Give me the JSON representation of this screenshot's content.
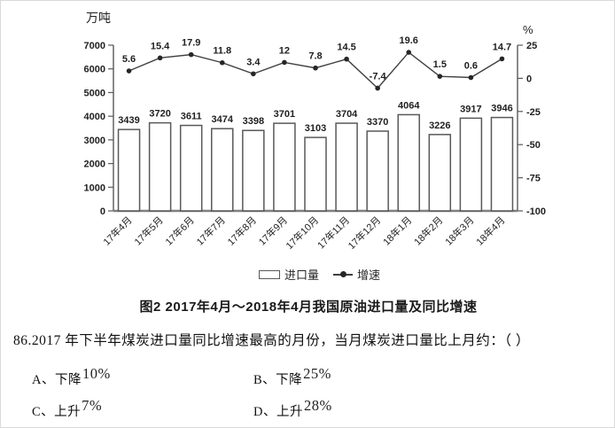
{
  "chart": {
    "unit_left": "万吨",
    "unit_right": "%",
    "legend": {
      "bar": "进口量",
      "line": "增速"
    },
    "title": "图2 2017年4月～2018年4月我国原油进口量及同比增速"
  },
  "chart_data": {
    "type": "bar+line",
    "title": "图2 2017年4月～2018年4月我国原油进口量及同比增速",
    "categories": [
      "17年4月",
      "17年5月",
      "17年6月",
      "17年7月",
      "17年8月",
      "17年9月",
      "17年10月",
      "17年11月",
      "17年12月",
      "18年1月",
      "18年2月",
      "18年3月",
      "18年4月"
    ],
    "series": [
      {
        "name": "进口量",
        "type": "bar",
        "axis": "left",
        "values": [
          3439,
          3720,
          3611,
          3474,
          3398,
          3701,
          3103,
          3704,
          3370,
          4064,
          3226,
          3917,
          3946
        ]
      },
      {
        "name": "增速",
        "type": "line",
        "axis": "right",
        "values": [
          5.6,
          15.4,
          17.9,
          11.8,
          3.4,
          12,
          7.8,
          14.5,
          -7.4,
          19.6,
          1.5,
          0.6,
          14.7
        ]
      }
    ],
    "left_axis": {
      "label": "万吨",
      "min": 0,
      "max": 7000,
      "step": 1000
    },
    "right_axis": {
      "label": "%",
      "min": -100,
      "max": 25,
      "step": 25
    },
    "grid": false,
    "legend_position": "bottom"
  },
  "question": {
    "text": "86.2017 年下半年煤炭进口量同比增速最高的月份，当月煤炭进口量比上月约：（ ）",
    "options": [
      {
        "label": "A、",
        "prefix": "下降",
        "value": "10%"
      },
      {
        "label": "B、",
        "prefix": "下降",
        "value": "25%"
      },
      {
        "label": "C、",
        "prefix": "上升",
        "value": "7%"
      },
      {
        "label": "D、",
        "prefix": "上升",
        "value": "28%"
      }
    ]
  }
}
